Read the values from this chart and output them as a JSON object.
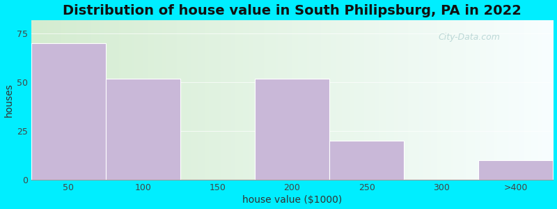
{
  "title": "Distribution of house value in South Philipsburg, PA in 2022",
  "xlabel": "house value ($1000)",
  "ylabel": "houses",
  "categories": [
    "50",
    "100",
    "150",
    "200",
    "250",
    "300",
    ">400"
  ],
  "bin_edges": [
    0,
    1,
    2,
    3,
    4,
    5,
    6,
    7
  ],
  "values": [
    70,
    52,
    0,
    52,
    20,
    0,
    10
  ],
  "bar_color": "#c9b8d8",
  "bar_edge_color": "#c9b8d8",
  "bg_outer": "#00eeff",
  "bg_inner_topleft": "#d4ecd0",
  "bg_inner_right": "#f8feff",
  "yticks": [
    0,
    25,
    50,
    75
  ],
  "ylim": [
    0,
    82
  ],
  "xlim": [
    0,
    7
  ],
  "title_fontsize": 14,
  "axis_label_fontsize": 10,
  "tick_fontsize": 9,
  "watermark": "City-Data.com"
}
